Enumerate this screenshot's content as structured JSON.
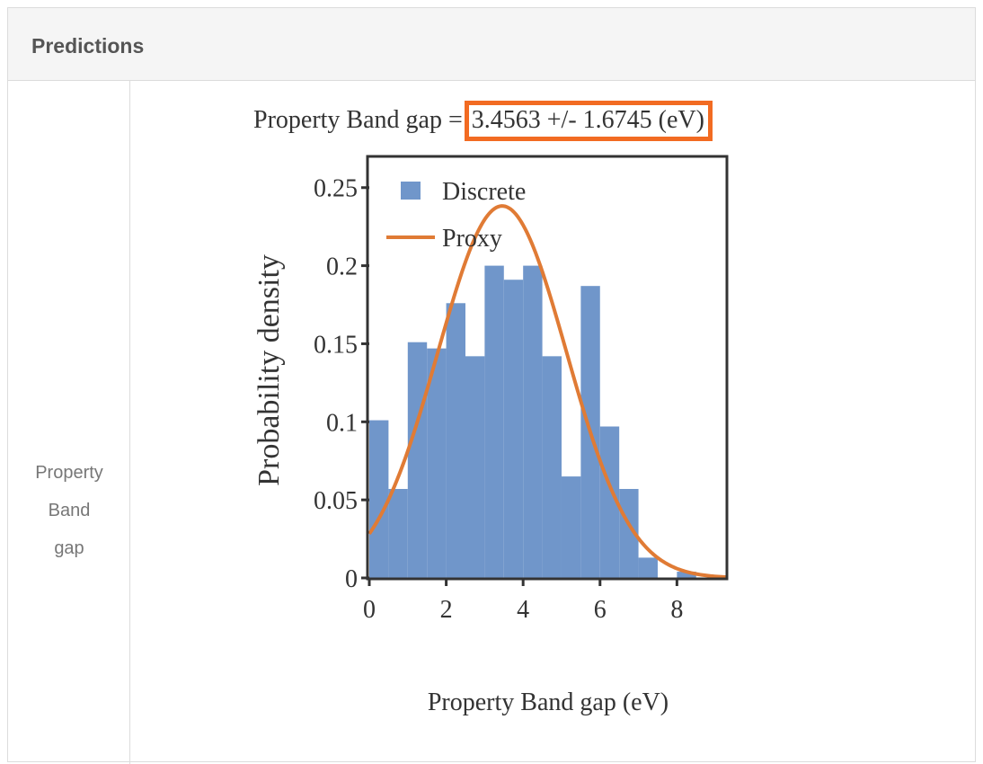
{
  "panel": {
    "title": "Predictions",
    "row_label_lines": [
      "Property",
      "Band",
      "gap"
    ]
  },
  "prediction": {
    "prefix": "Property Band gap =",
    "value_text": "3.4563 +/- 1.6745  (eV)",
    "highlight_color": "#f26b22"
  },
  "chart_data": {
    "type": "bar",
    "xlabel": "Property Band gap (eV)",
    "ylabel": "Probability density",
    "xlim": [
      0,
      9.3
    ],
    "ylim": [
      0,
      0.27
    ],
    "xticks": [
      0,
      2,
      4,
      6,
      8
    ],
    "xtick_labels": [
      "0",
      "2",
      "4",
      "6",
      "8"
    ],
    "yticks": [
      0,
      0.05,
      0.1,
      0.15,
      0.2,
      0.25
    ],
    "ytick_labels": [
      "0",
      "0.05",
      "0.1",
      "0.15",
      "0.2",
      "0.25"
    ],
    "legend_position": "top-left",
    "series": [
      {
        "name": "Discrete",
        "kind": "histogram",
        "color": "#7096ca",
        "bin_width": 0.5,
        "bins": [
          {
            "x0": 0.0,
            "value": 0.101
          },
          {
            "x0": 0.5,
            "value": 0.057
          },
          {
            "x0": 1.0,
            "value": 0.151
          },
          {
            "x0": 1.5,
            "value": 0.147
          },
          {
            "x0": 2.0,
            "value": 0.176
          },
          {
            "x0": 2.5,
            "value": 0.142
          },
          {
            "x0": 3.0,
            "value": 0.2
          },
          {
            "x0": 3.5,
            "value": 0.191
          },
          {
            "x0": 4.0,
            "value": 0.2
          },
          {
            "x0": 4.5,
            "value": 0.142
          },
          {
            "x0": 5.0,
            "value": 0.065
          },
          {
            "x0": 5.5,
            "value": 0.187
          },
          {
            "x0": 6.0,
            "value": 0.097
          },
          {
            "x0": 6.5,
            "value": 0.057
          },
          {
            "x0": 7.0,
            "value": 0.013
          },
          {
            "x0": 7.5,
            "value": 0.0
          },
          {
            "x0": 8.0,
            "value": 0.004
          }
        ]
      },
      {
        "name": "Proxy",
        "kind": "line",
        "color": "#e07b35",
        "mean": 3.4563,
        "std": 1.6745
      }
    ]
  }
}
